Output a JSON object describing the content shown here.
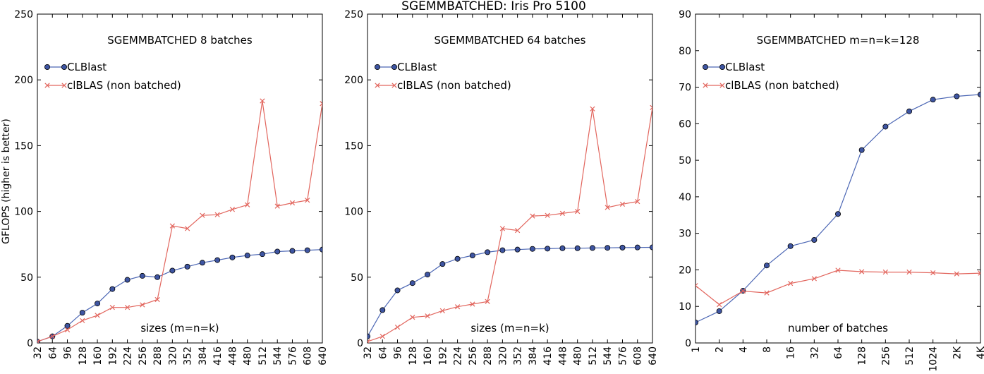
{
  "figure": {
    "title": "SGEMMBATCHED: Iris Pro 5100",
    "ylabel": "GFLOPS (higher is better)"
  },
  "colors": {
    "clblast": "#4b66b4",
    "clblast_marker": "#3e55a2",
    "clblas": "#e2665e",
    "axis": "#000000"
  },
  "chart_data": [
    {
      "type": "line",
      "title": "SGEMMBATCHED 8 batches",
      "xlabel": "sizes (m=n=k)",
      "ylabel": "GFLOPS (higher is better)",
      "categories": [
        "32",
        "64",
        "96",
        "128",
        "160",
        "192",
        "224",
        "256",
        "288",
        "320",
        "352",
        "384",
        "416",
        "448",
        "480",
        "512",
        "544",
        "576",
        "608",
        "640"
      ],
      "ylim": [
        0,
        250
      ],
      "yticks": [
        0,
        50,
        100,
        150,
        200,
        250
      ],
      "legend": "top-left",
      "grid": false,
      "series": [
        {
          "name": "CLBlast",
          "marker": "circle",
          "values": [
            1,
            5,
            13,
            23,
            30,
            41,
            48,
            51,
            50,
            55,
            58,
            61,
            63,
            65,
            66.5,
            67.5,
            69.5,
            70,
            70.5,
            71
          ]
        },
        {
          "name": "clBLAS (non batched)",
          "marker": "x",
          "values": [
            1,
            5,
            10,
            17,
            21,
            27,
            27,
            29,
            33,
            89,
            87,
            97,
            97.5,
            101.5,
            105,
            184,
            104,
            106.5,
            108.5,
            182
          ]
        }
      ]
    },
    {
      "type": "line",
      "title": "SGEMMBATCHED 64 batches",
      "xlabel": "sizes (m=n=k)",
      "categories": [
        "32",
        "64",
        "96",
        "128",
        "160",
        "192",
        "224",
        "256",
        "288",
        "320",
        "352",
        "384",
        "416",
        "448",
        "480",
        "512",
        "544",
        "576",
        "608",
        "640"
      ],
      "ylim": [
        0,
        250
      ],
      "yticks": [
        0,
        50,
        100,
        150,
        200,
        250
      ],
      "legend": "top-left",
      "grid": false,
      "series": [
        {
          "name": "CLBlast",
          "marker": "circle",
          "values": [
            5,
            25,
            40,
            45.5,
            52,
            60,
            64,
            66.5,
            69,
            70.5,
            71,
            71.5,
            71.7,
            72,
            72,
            72.2,
            72.3,
            72.5,
            72.6,
            72.7
          ]
        },
        {
          "name": "clBLAS (non batched)",
          "marker": "x",
          "values": [
            1,
            5,
            12,
            19.5,
            20.5,
            24.5,
            27.5,
            29.5,
            31.5,
            87,
            85.5,
            96.5,
            97,
            98.5,
            100,
            178,
            103,
            105.5,
            107.5,
            179
          ]
        }
      ]
    },
    {
      "type": "line",
      "title": "SGEMMBATCHED m=n=k=128",
      "xlabel": "number of batches",
      "categories": [
        "1",
        "2",
        "4",
        "8",
        "16",
        "32",
        "64",
        "128",
        "256",
        "512",
        "1024",
        "2K",
        "4K"
      ],
      "ylim": [
        0,
        90
      ],
      "yticks": [
        0,
        10,
        20,
        30,
        40,
        50,
        60,
        70,
        80,
        90
      ],
      "legend": "top-left",
      "grid": false,
      "series": [
        {
          "name": "CLBlast",
          "marker": "circle",
          "values": [
            5.6,
            8.7,
            14.3,
            21.2,
            26.5,
            28.2,
            35.3,
            52.8,
            59.2,
            63.4,
            66.6,
            67.5,
            68
          ]
        },
        {
          "name": "clBLAS (non batched)",
          "marker": "x",
          "values": [
            15.7,
            10.5,
            14.2,
            13.7,
            16.3,
            17.6,
            19.9,
            19.5,
            19.4,
            19.4,
            19.2,
            18.9,
            19.1
          ]
        }
      ]
    }
  ]
}
